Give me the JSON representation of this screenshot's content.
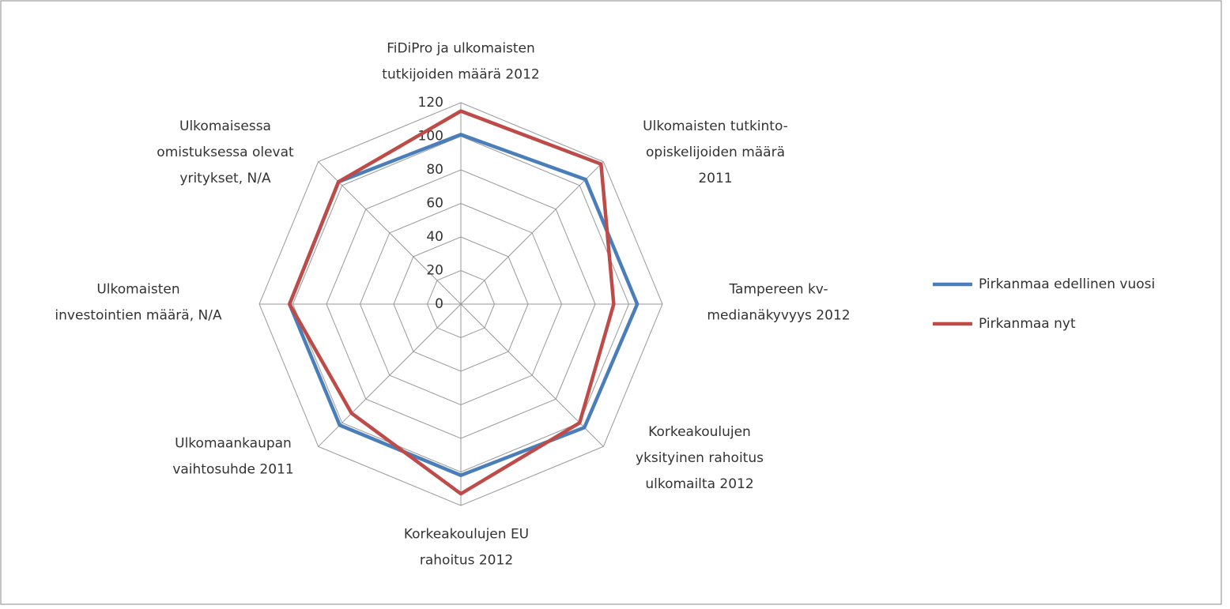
{
  "chart_data": {
    "type": "radar",
    "categories": [
      "FiDiPro ja ulkomaisten\ntutkijoiden määrä 2012",
      "Ulkomaisten tutkinto-\nopiskelijoiden määrä\n2011",
      "Tampereen kv-\nmedianäkyvyys 2012",
      "Korkeakoulujen\nyksityinen rahoitus\nulkomailta 2012",
      "Korkeakoulujen EU\nrahoitus 2012",
      "Ulkomaankaupan\nvaihtosuhde 2011",
      "Ulkomaisten\ninvestointien määrä, N/A",
      "Ulkomaisessa\nomistuksessa olevat\nyritykset, N/A"
    ],
    "series": [
      {
        "name": "Pirkanmaa edellinen vuosi",
        "color": "#4a7ebb",
        "values": [
          101,
          105,
          105,
          104,
          102,
          102,
          102,
          103
        ]
      },
      {
        "name": "Pirkanmaa nyt",
        "color": "#be4b48",
        "values": [
          115,
          118,
          91,
          100,
          113,
          92,
          102,
          103
        ]
      }
    ],
    "ylim": [
      0,
      120
    ],
    "yticks": [
      0,
      20,
      40,
      60,
      80,
      100,
      120
    ],
    "grid": true,
    "legend": "right"
  }
}
